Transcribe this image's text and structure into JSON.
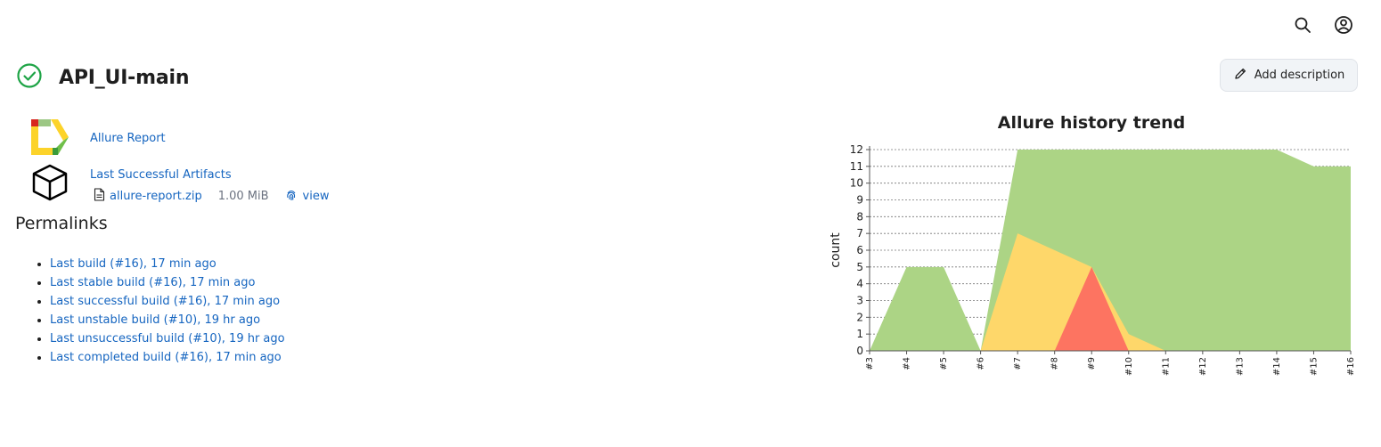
{
  "header": {
    "search_icon": "search-icon",
    "user_icon": "user-circle-icon"
  },
  "job": {
    "status_icon": "check-circle-icon",
    "status_color": "#1ea446",
    "title": "API_UI-main",
    "add_description_label": "Add description"
  },
  "actions": {
    "allure_report_label": "Allure Report",
    "last_successful_artifacts_label": "Last Successful Artifacts",
    "artifact": {
      "name": "allure-report.zip",
      "size": "1.00 MiB",
      "view_label": "view"
    }
  },
  "permalinks": {
    "title": "Permalinks",
    "items": [
      "Last build (#16), 17 min ago",
      "Last stable build (#16), 17 min ago",
      "Last successful build (#16), 17 min ago",
      "Last unstable build (#10), 19 hr ago",
      "Last unsuccessful build (#10), 19 hr ago",
      "Last completed build (#16), 17 min ago"
    ]
  },
  "colors": {
    "link": "#1565c0",
    "passed": "#acd485",
    "broken": "#fed76a",
    "failed": "#fd7461"
  },
  "chart_data": {
    "type": "area",
    "title": "Allure history trend",
    "ylabel": "count",
    "xlabel": "",
    "ylim": [
      0,
      12
    ],
    "yticks": [
      0,
      1,
      2,
      3,
      4,
      5,
      6,
      7,
      8,
      9,
      10,
      11,
      12
    ],
    "grid": true,
    "x": [
      "#3",
      "#4",
      "#5",
      "#6",
      "#7",
      "#8",
      "#9",
      "#10",
      "#11",
      "#12",
      "#13",
      "#14",
      "#15",
      "#16"
    ],
    "series": [
      {
        "color": "#acd485",
        "values": [
          0,
          5,
          5,
          0,
          12,
          12,
          12,
          12,
          12,
          12,
          12,
          12,
          11,
          11
        ]
      },
      {
        "color": "#fed76a",
        "values": [
          0,
          0,
          0,
          0,
          7,
          6,
          5,
          1,
          0,
          0,
          0,
          0,
          0,
          0
        ]
      },
      {
        "color": "#fd7461",
        "values": [
          0,
          0,
          0,
          0,
          0,
          0,
          5,
          0,
          0,
          0,
          0,
          0,
          0,
          0
        ]
      }
    ]
  }
}
